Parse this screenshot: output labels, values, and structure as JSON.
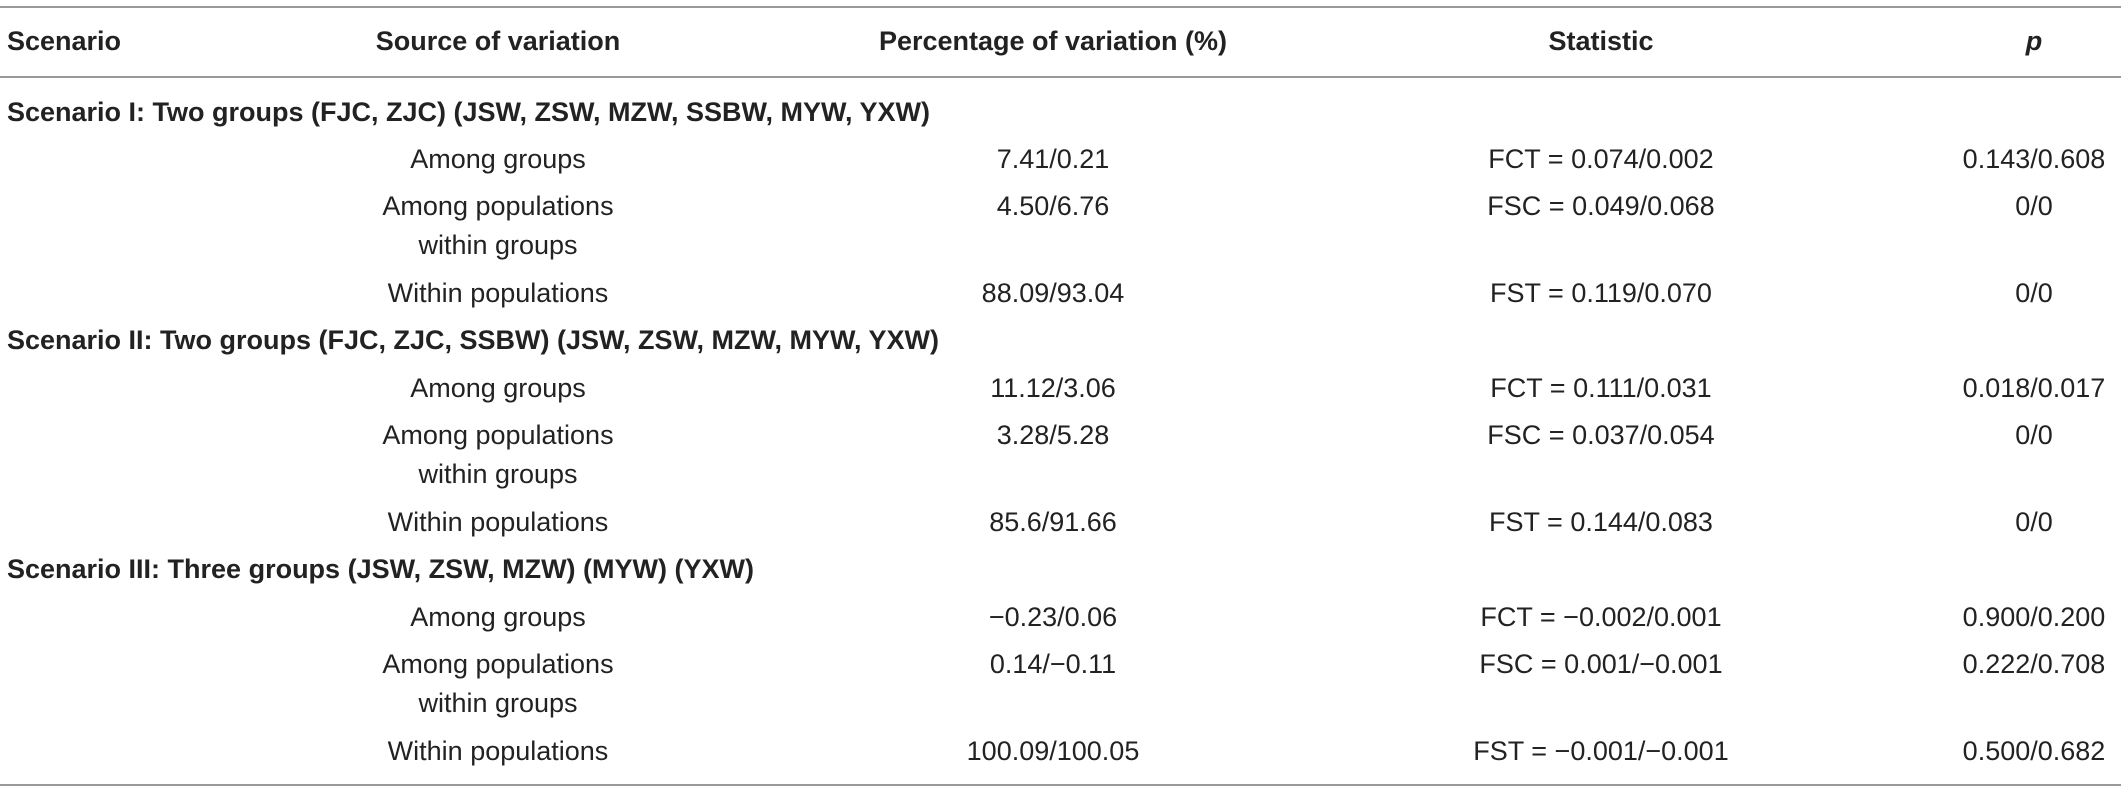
{
  "table": {
    "header": [
      "Scenario",
      "Source of variation",
      "Percentage of variation (%)",
      "Statistic",
      "p"
    ],
    "groups": [
      {
        "title": "Scenario I: Two groups (FJC, ZJC) (JSW, ZSW, MZW, SSBW, MYW, YXW)",
        "rows": [
          [
            "Among groups",
            "7.41/0.21",
            "FCT = 0.074/0.002",
            "0.143/0.608"
          ],
          [
            "Among populations within groups",
            "4.50/6.76",
            "FSC = 0.049/0.068",
            "0/0"
          ],
          [
            "Within populations",
            "88.09/93.04",
            "FST = 0.119/0.070",
            "0/0"
          ]
        ]
      },
      {
        "title": "Scenario II: Two groups (FJC, ZJC, SSBW) (JSW, ZSW, MZW, MYW, YXW)",
        "rows": [
          [
            "Among groups",
            "11.12/3.06",
            "FCT = 0.111/0.031",
            "0.018/0.017"
          ],
          [
            "Among populations within groups",
            "3.28/5.28",
            "FSC = 0.037/0.054",
            "0/0"
          ],
          [
            "Within populations",
            "85.6/91.66",
            "FST = 0.144/0.083",
            "0/0"
          ]
        ]
      },
      {
        "title": "Scenario III: Three groups (JSW, ZSW, MZW) (MYW) (YXW)",
        "rows": [
          [
            "Among groups",
            "−0.23/0.06",
            "FCT = −0.002/0.001",
            "0.900/0.200"
          ],
          [
            "Among populations within groups",
            "0.14/−0.11",
            "FSC = 0.001/−0.001",
            "0.222/0.708"
          ],
          [
            "Within populations",
            "100.09/100.05",
            "FST = −0.001/−0.001",
            "0.500/0.682"
          ]
        ]
      }
    ]
  }
}
